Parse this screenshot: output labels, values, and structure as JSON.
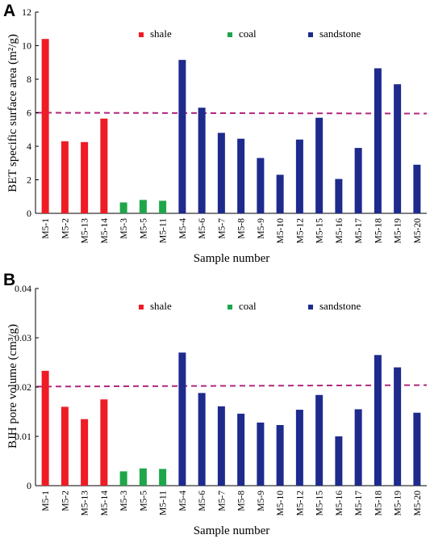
{
  "colors": {
    "shale": "#ee1c25",
    "coal": "#1fa64a",
    "sandstone": "#1e2a8c",
    "reference_line": "#b0277f"
  },
  "legend": [
    {
      "key": "shale",
      "label": "shale"
    },
    {
      "key": "coal",
      "label": "coal"
    },
    {
      "key": "sandstone",
      "label": "sandstone"
    }
  ],
  "chart_data": [
    {
      "panel": "A",
      "type": "bar",
      "categories": [
        "M5-1",
        "M5-2",
        "M5-13",
        "M5-14",
        "M5-3",
        "M5-5",
        "M5-11",
        "M5-4",
        "M5-6",
        "M5-7",
        "M5-8",
        "M5-9",
        "M5-10",
        "M5-12",
        "M5-15",
        "M5-16",
        "M5-17",
        "M5-18",
        "M5-19",
        "M5-20"
      ],
      "groups": [
        "shale",
        "shale",
        "shale",
        "shale",
        "coal",
        "coal",
        "coal",
        "sandstone",
        "sandstone",
        "sandstone",
        "sandstone",
        "sandstone",
        "sandstone",
        "sandstone",
        "sandstone",
        "sandstone",
        "sandstone",
        "sandstone",
        "sandstone",
        "sandstone"
      ],
      "values": [
        10.4,
        4.3,
        4.25,
        5.65,
        0.65,
        0.8,
        0.75,
        9.15,
        6.3,
        4.8,
        4.45,
        3.3,
        2.3,
        4.4,
        5.7,
        2.05,
        3.9,
        8.65,
        7.7,
        2.9
      ],
      "reference_line": {
        "start": 6.0,
        "end": 5.95
      },
      "ylim": [
        0,
        12
      ],
      "yticks": [
        0,
        2,
        4,
        6,
        8,
        10,
        12
      ],
      "ytick_labels": [
        "0",
        "2",
        "4",
        "6",
        "8",
        "10",
        "12"
      ],
      "xlabel": "Sample number",
      "ylabel": "BET specific surface area (m²/g)",
      "legend_position": "top-center"
    },
    {
      "panel": "B",
      "type": "bar",
      "categories": [
        "M5-1",
        "M5-2",
        "M5-13",
        "M5-14",
        "M5-3",
        "M5-5",
        "M5-11",
        "M5-4",
        "M5-6",
        "M5-7",
        "M5-8",
        "M5-9",
        "M5-10",
        "M5-12",
        "M5-15",
        "M5-16",
        "M5-17",
        "M5-18",
        "M5-19",
        "M5-20"
      ],
      "groups": [
        "shale",
        "shale",
        "shale",
        "shale",
        "coal",
        "coal",
        "coal",
        "sandstone",
        "sandstone",
        "sandstone",
        "sandstone",
        "sandstone",
        "sandstone",
        "sandstone",
        "sandstone",
        "sandstone",
        "sandstone",
        "sandstone",
        "sandstone",
        "sandstone"
      ],
      "values": [
        0.0233,
        0.016,
        0.0135,
        0.0175,
        0.0029,
        0.0035,
        0.0034,
        0.027,
        0.0188,
        0.0161,
        0.0146,
        0.0128,
        0.0123,
        0.0154,
        0.0184,
        0.01,
        0.0155,
        0.0265,
        0.024,
        0.0148
      ],
      "reference_line": {
        "start": 0.0201,
        "end": 0.0204
      },
      "ylim": [
        0,
        0.04
      ],
      "yticks": [
        0,
        0.01,
        0.02,
        0.03,
        0.04
      ],
      "ytick_labels": [
        "0",
        "0.01",
        "0.02",
        "0.03",
        "0.04"
      ],
      "xlabel": "Sample number",
      "ylabel": "BJH pore volume (cm³/g)",
      "legend_position": "top-center"
    }
  ]
}
